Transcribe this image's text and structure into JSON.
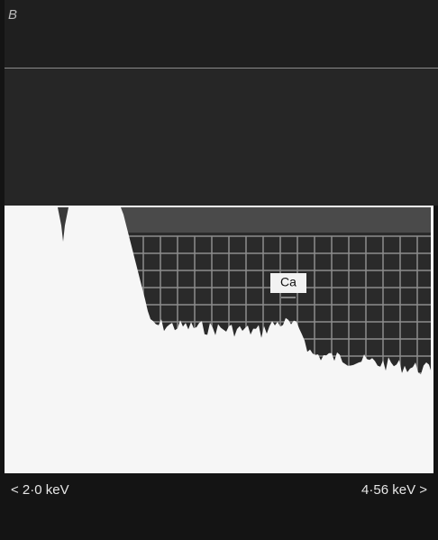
{
  "panel_label": "B",
  "peak_label": "Ca",
  "axis": {
    "start_label": "< 2·0 keV",
    "end_label": "4·56 keV >"
  }
}
